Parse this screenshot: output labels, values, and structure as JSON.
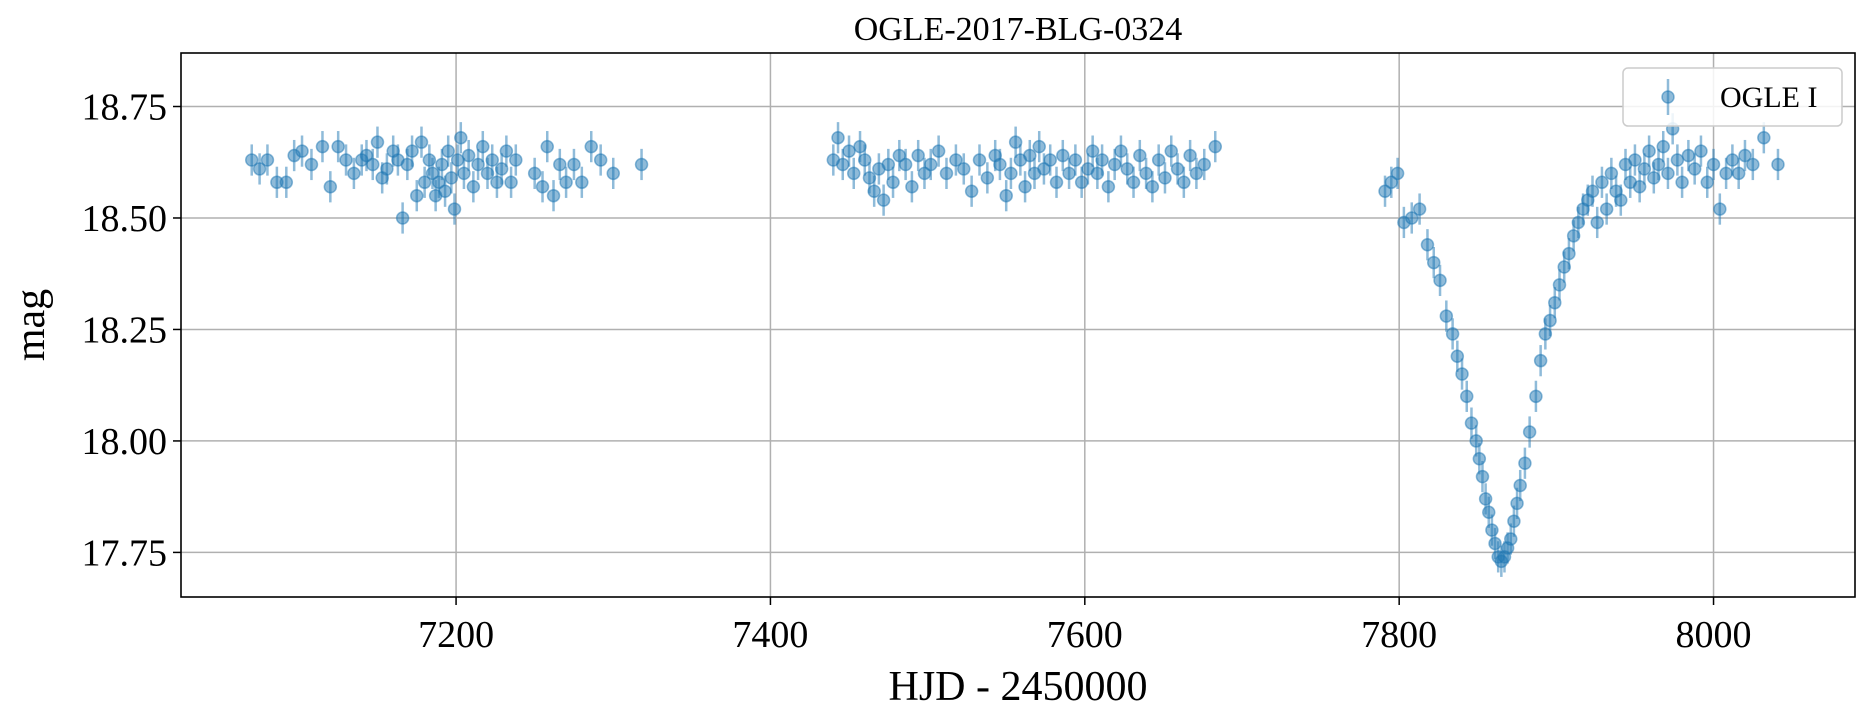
{
  "chart_data": {
    "type": "scatter",
    "title": "OGLE-2017-BLG-0324",
    "xlabel": "HJD - 2450000",
    "ylabel": "mag",
    "xlim": [
      7025,
      8090
    ],
    "ylim": [
      18.87,
      17.65
    ],
    "y_inverted": true,
    "xticks": [
      7200,
      7400,
      7600,
      7800,
      8000
    ],
    "xtick_labels": [
      "7200",
      "7400",
      "7600",
      "7800",
      "8000"
    ],
    "yticks": [
      17.75,
      18.0,
      18.25,
      18.5,
      18.75
    ],
    "ytick_labels": [
      "17.75",
      "18.00",
      "18.25",
      "18.50",
      "18.75"
    ],
    "grid": true,
    "legend_position": "top-right",
    "series": [
      {
        "name": "OGLE I",
        "color": "#1f77b4",
        "marker": "circle-with-errorbars",
        "alpha": 0.5,
        "error_typical": 0.035,
        "points": [
          [
            7070,
            18.63
          ],
          [
            7075,
            18.61
          ],
          [
            7080,
            18.63
          ],
          [
            7086,
            18.58
          ],
          [
            7092,
            18.58
          ],
          [
            7097,
            18.64
          ],
          [
            7102,
            18.65
          ],
          [
            7108,
            18.62
          ],
          [
            7115,
            18.66
          ],
          [
            7120,
            18.57
          ],
          [
            7125,
            18.66
          ],
          [
            7130,
            18.63
          ],
          [
            7135,
            18.6
          ],
          [
            7140,
            18.63
          ],
          [
            7143,
            18.64
          ],
          [
            7147,
            18.62
          ],
          [
            7150,
            18.67
          ],
          [
            7153,
            18.59
          ],
          [
            7156,
            18.61
          ],
          [
            7160,
            18.65
          ],
          [
            7163,
            18.63
          ],
          [
            7166,
            18.5
          ],
          [
            7169,
            18.62
          ],
          [
            7172,
            18.65
          ],
          [
            7175,
            18.55
          ],
          [
            7178,
            18.67
          ],
          [
            7180,
            18.58
          ],
          [
            7183,
            18.63
          ],
          [
            7185,
            18.6
          ],
          [
            7187,
            18.55
          ],
          [
            7189,
            18.58
          ],
          [
            7191,
            18.62
          ],
          [
            7193,
            18.56
          ],
          [
            7195,
            18.65
          ],
          [
            7197,
            18.59
          ],
          [
            7199,
            18.52
          ],
          [
            7201,
            18.63
          ],
          [
            7203,
            18.68
          ],
          [
            7205,
            18.6
          ],
          [
            7208,
            18.64
          ],
          [
            7211,
            18.57
          ],
          [
            7214,
            18.62
          ],
          [
            7217,
            18.66
          ],
          [
            7220,
            18.6
          ],
          [
            7223,
            18.63
          ],
          [
            7226,
            18.58
          ],
          [
            7229,
            18.61
          ],
          [
            7232,
            18.65
          ],
          [
            7235,
            18.58
          ],
          [
            7238,
            18.63
          ],
          [
            7250,
            18.6
          ],
          [
            7255,
            18.57
          ],
          [
            7258,
            18.66
          ],
          [
            7262,
            18.55
          ],
          [
            7266,
            18.62
          ],
          [
            7270,
            18.58
          ],
          [
            7275,
            18.62
          ],
          [
            7280,
            18.58
          ],
          [
            7286,
            18.66
          ],
          [
            7292,
            18.63
          ],
          [
            7300,
            18.6
          ],
          [
            7318,
            18.62
          ],
          [
            7440,
            18.63
          ],
          [
            7443,
            18.68
          ],
          [
            7446,
            18.62
          ],
          [
            7450,
            18.65
          ],
          [
            7453,
            18.6
          ],
          [
            7457,
            18.66
          ],
          [
            7460,
            18.63
          ],
          [
            7463,
            18.59
          ],
          [
            7466,
            18.56
          ],
          [
            7469,
            18.61
          ],
          [
            7472,
            18.54
          ],
          [
            7475,
            18.62
          ],
          [
            7478,
            18.58
          ],
          [
            7482,
            18.64
          ],
          [
            7486,
            18.62
          ],
          [
            7490,
            18.57
          ],
          [
            7494,
            18.64
          ],
          [
            7498,
            18.6
          ],
          [
            7502,
            18.62
          ],
          [
            7507,
            18.65
          ],
          [
            7512,
            18.6
          ],
          [
            7518,
            18.63
          ],
          [
            7523,
            18.61
          ],
          [
            7528,
            18.56
          ],
          [
            7533,
            18.63
          ],
          [
            7538,
            18.59
          ],
          [
            7543,
            18.64
          ],
          [
            7546,
            18.62
          ],
          [
            7550,
            18.55
          ],
          [
            7553,
            18.6
          ],
          [
            7556,
            18.67
          ],
          [
            7559,
            18.63
          ],
          [
            7562,
            18.57
          ],
          [
            7565,
            18.64
          ],
          [
            7568,
            18.6
          ],
          [
            7571,
            18.66
          ],
          [
            7574,
            18.61
          ],
          [
            7578,
            18.63
          ],
          [
            7582,
            18.58
          ],
          [
            7586,
            18.64
          ],
          [
            7590,
            18.6
          ],
          [
            7594,
            18.63
          ],
          [
            7598,
            18.58
          ],
          [
            7602,
            18.61
          ],
          [
            7605,
            18.65
          ],
          [
            7608,
            18.6
          ],
          [
            7611,
            18.63
          ],
          [
            7615,
            18.57
          ],
          [
            7619,
            18.62
          ],
          [
            7623,
            18.65
          ],
          [
            7627,
            18.61
          ],
          [
            7631,
            18.58
          ],
          [
            7635,
            18.64
          ],
          [
            7639,
            18.6
          ],
          [
            7643,
            18.57
          ],
          [
            7647,
            18.63
          ],
          [
            7651,
            18.59
          ],
          [
            7655,
            18.65
          ],
          [
            7659,
            18.61
          ],
          [
            7663,
            18.58
          ],
          [
            7667,
            18.64
          ],
          [
            7671,
            18.6
          ],
          [
            7676,
            18.62
          ],
          [
            7683,
            18.66
          ],
          [
            7791,
            18.56
          ],
          [
            7795,
            18.58
          ],
          [
            7799,
            18.6
          ],
          [
            7803,
            18.49
          ],
          [
            7808,
            18.5
          ],
          [
            7813,
            18.52
          ],
          [
            7818,
            18.44
          ],
          [
            7822,
            18.4
          ],
          [
            7826,
            18.36
          ],
          [
            7830,
            18.28
          ],
          [
            7834,
            18.24
          ],
          [
            7837,
            18.19
          ],
          [
            7840,
            18.15
          ],
          [
            7843,
            18.1
          ],
          [
            7846,
            18.04
          ],
          [
            7849,
            18.0
          ],
          [
            7851,
            17.96
          ],
          [
            7853,
            17.92
          ],
          [
            7855,
            17.87
          ],
          [
            7857,
            17.84
          ],
          [
            7859,
            17.8
          ],
          [
            7861,
            17.77
          ],
          [
            7863,
            17.74
          ],
          [
            7865,
            17.73
          ],
          [
            7867,
            17.74
          ],
          [
            7869,
            17.76
          ],
          [
            7871,
            17.78
          ],
          [
            7873,
            17.82
          ],
          [
            7875,
            17.86
          ],
          [
            7877,
            17.9
          ],
          [
            7880,
            17.95
          ],
          [
            7883,
            18.02
          ],
          [
            7887,
            18.1
          ],
          [
            7890,
            18.18
          ],
          [
            7893,
            18.24
          ],
          [
            7896,
            18.27
          ],
          [
            7899,
            18.31
          ],
          [
            7902,
            18.35
          ],
          [
            7905,
            18.39
          ],
          [
            7908,
            18.42
          ],
          [
            7911,
            18.46
          ],
          [
            7914,
            18.49
          ],
          [
            7917,
            18.52
          ],
          [
            7920,
            18.54
          ],
          [
            7923,
            18.56
          ],
          [
            7926,
            18.49
          ],
          [
            7929,
            18.58
          ],
          [
            7932,
            18.52
          ],
          [
            7935,
            18.6
          ],
          [
            7938,
            18.56
          ],
          [
            7941,
            18.54
          ],
          [
            7944,
            18.62
          ],
          [
            7947,
            18.58
          ],
          [
            7950,
            18.63
          ],
          [
            7953,
            18.57
          ],
          [
            7956,
            18.61
          ],
          [
            7959,
            18.65
          ],
          [
            7962,
            18.59
          ],
          [
            7965,
            18.62
          ],
          [
            7968,
            18.66
          ],
          [
            7971,
            18.6
          ],
          [
            7974,
            18.7
          ],
          [
            7977,
            18.63
          ],
          [
            7980,
            18.58
          ],
          [
            7984,
            18.64
          ],
          [
            7988,
            18.61
          ],
          [
            7992,
            18.65
          ],
          [
            7996,
            18.58
          ],
          [
            8000,
            18.62
          ],
          [
            8004,
            18.52
          ],
          [
            8008,
            18.6
          ],
          [
            8012,
            18.63
          ],
          [
            8016,
            18.6
          ],
          [
            8020,
            18.64
          ],
          [
            8025,
            18.62
          ],
          [
            8032,
            18.68
          ],
          [
            8041,
            18.62
          ]
        ]
      }
    ]
  }
}
